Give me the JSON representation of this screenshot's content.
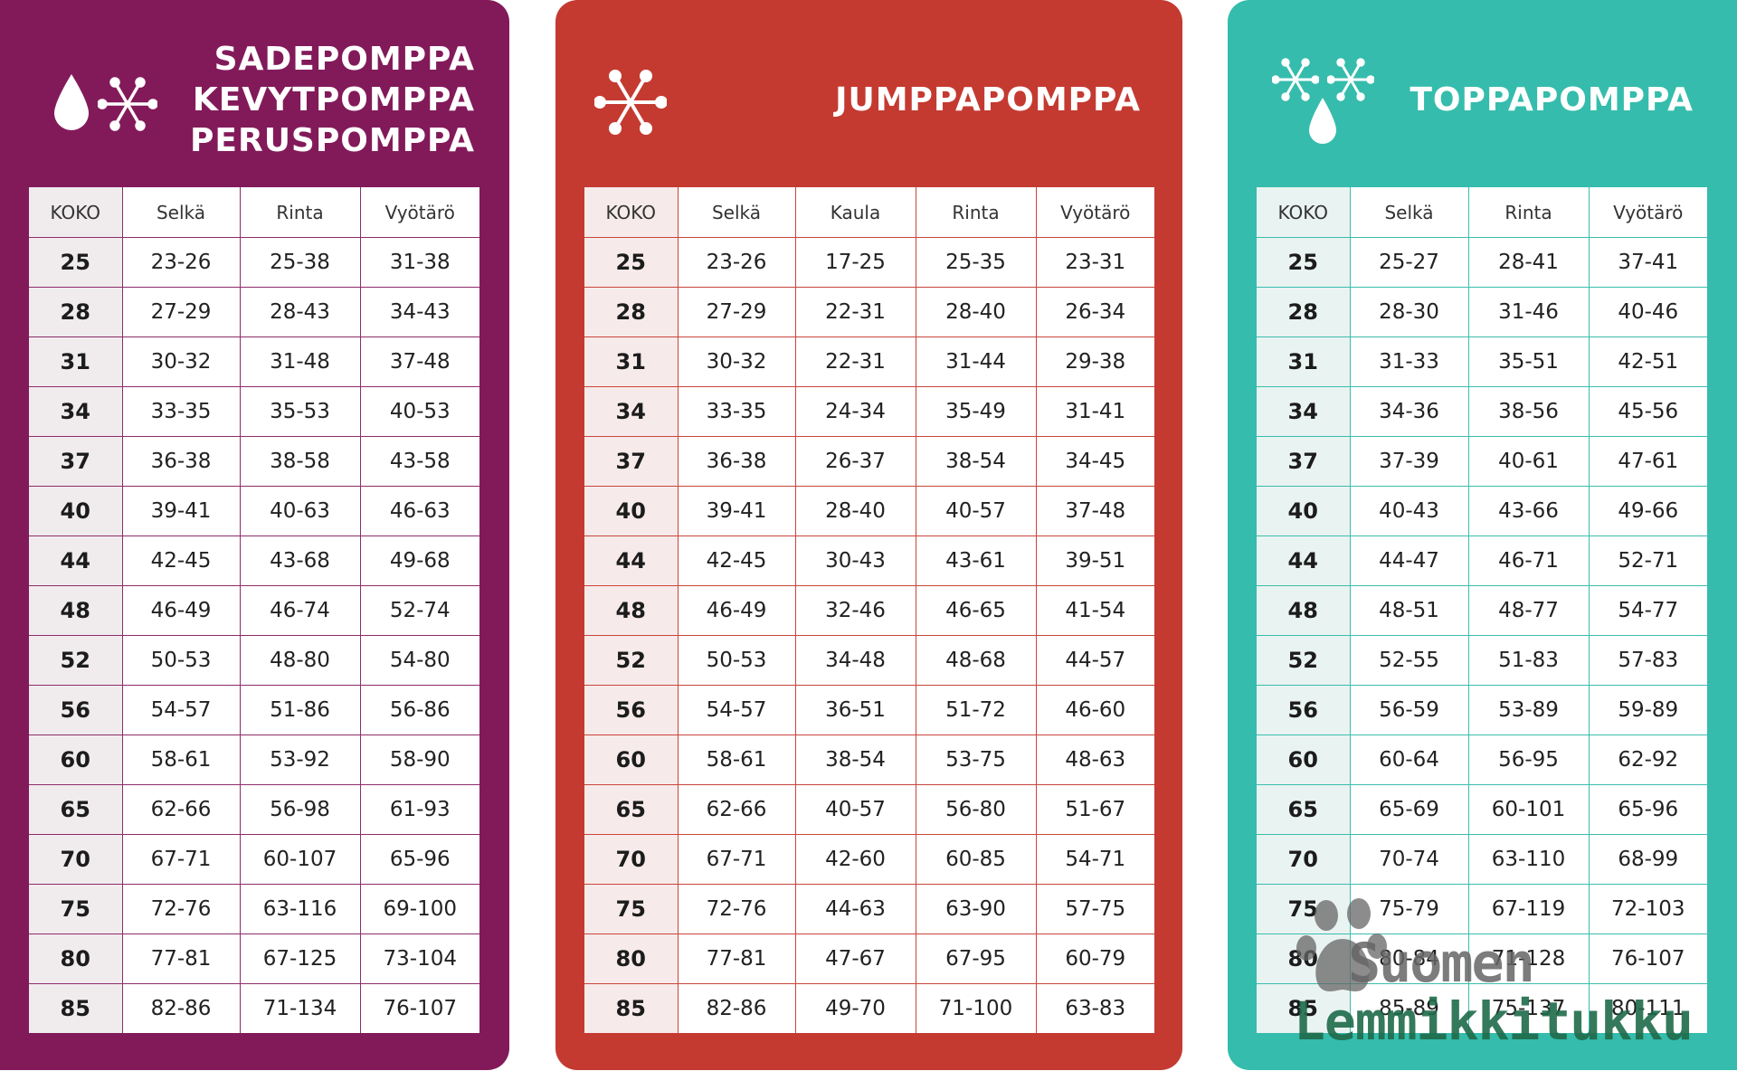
{
  "cards": [
    {
      "titles": [
        "SADEPOMPPA",
        "KEVYTPOMPPA",
        "PERUSPOMPPA"
      ],
      "headers": [
        "KOKO",
        "Selkä",
        "Rinta",
        "Vyötärö"
      ],
      "rows": [
        [
          "25",
          "23-26",
          "25-38",
          "31-38"
        ],
        [
          "28",
          "27-29",
          "28-43",
          "34-43"
        ],
        [
          "31",
          "30-32",
          "31-48",
          "37-48"
        ],
        [
          "34",
          "33-35",
          "35-53",
          "40-53"
        ],
        [
          "37",
          "36-38",
          "38-58",
          "43-58"
        ],
        [
          "40",
          "39-41",
          "40-63",
          "46-63"
        ],
        [
          "44",
          "42-45",
          "43-68",
          "49-68"
        ],
        [
          "48",
          "46-49",
          "46-74",
          "52-74"
        ],
        [
          "52",
          "50-53",
          "48-80",
          "54-80"
        ],
        [
          "56",
          "54-57",
          "51-86",
          "56-86"
        ],
        [
          "60",
          "58-61",
          "53-92",
          "58-90"
        ],
        [
          "65",
          "62-66",
          "56-98",
          "61-93"
        ],
        [
          "70",
          "67-71",
          "60-107",
          "65-96"
        ],
        [
          "75",
          "72-76",
          "63-116",
          "69-100"
        ],
        [
          "80",
          "77-81",
          "67-125",
          "73-104"
        ],
        [
          "85",
          "82-86",
          "71-134",
          "76-107"
        ]
      ]
    },
    {
      "titles": [
        "JUMPPAPOMPPA"
      ],
      "headers": [
        "KOKO",
        "Selkä",
        "Kaula",
        "Rinta",
        "Vyötärö"
      ],
      "rows": [
        [
          "25",
          "23-26",
          "17-25",
          "25-35",
          "23-31"
        ],
        [
          "28",
          "27-29",
          "22-31",
          "28-40",
          "26-34"
        ],
        [
          "31",
          "30-32",
          "22-31",
          "31-44",
          "29-38"
        ],
        [
          "34",
          "33-35",
          "24-34",
          "35-49",
          "31-41"
        ],
        [
          "37",
          "36-38",
          "26-37",
          "38-54",
          "34-45"
        ],
        [
          "40",
          "39-41",
          "28-40",
          "40-57",
          "37-48"
        ],
        [
          "44",
          "42-45",
          "30-43",
          "43-61",
          "39-51"
        ],
        [
          "48",
          "46-49",
          "32-46",
          "46-65",
          "41-54"
        ],
        [
          "52",
          "50-53",
          "34-48",
          "48-68",
          "44-57"
        ],
        [
          "56",
          "54-57",
          "36-51",
          "51-72",
          "46-60"
        ],
        [
          "60",
          "58-61",
          "38-54",
          "53-75",
          "48-63"
        ],
        [
          "65",
          "62-66",
          "40-57",
          "56-80",
          "51-67"
        ],
        [
          "70",
          "67-71",
          "42-60",
          "60-85",
          "54-71"
        ],
        [
          "75",
          "72-76",
          "44-63",
          "63-90",
          "57-75"
        ],
        [
          "80",
          "77-81",
          "47-67",
          "67-95",
          "60-79"
        ],
        [
          "85",
          "82-86",
          "49-70",
          "71-100",
          "63-83"
        ]
      ]
    },
    {
      "titles": [
        "TOPPAPOMPPA"
      ],
      "headers": [
        "KOKO",
        "Selkä",
        "Rinta",
        "Vyötärö"
      ],
      "rows": [
        [
          "25",
          "25-27",
          "28-41",
          "37-41"
        ],
        [
          "28",
          "28-30",
          "31-46",
          "40-46"
        ],
        [
          "31",
          "31-33",
          "35-51",
          "42-51"
        ],
        [
          "34",
          "34-36",
          "38-56",
          "45-56"
        ],
        [
          "37",
          "37-39",
          "40-61",
          "47-61"
        ],
        [
          "40",
          "40-43",
          "43-66",
          "49-66"
        ],
        [
          "44",
          "44-47",
          "46-71",
          "52-71"
        ],
        [
          "48",
          "48-51",
          "48-77",
          "54-77"
        ],
        [
          "52",
          "52-55",
          "51-83",
          "57-83"
        ],
        [
          "56",
          "56-59",
          "53-89",
          "59-89"
        ],
        [
          "60",
          "60-64",
          "56-95",
          "62-92"
        ],
        [
          "65",
          "65-69",
          "60-101",
          "65-96"
        ],
        [
          "70",
          "70-74",
          "63-110",
          "68-99"
        ],
        [
          "75",
          "75-79",
          "67-119",
          "72-103"
        ],
        [
          "80",
          "80-84",
          "71-128",
          "76-107"
        ],
        [
          "85",
          "85-89",
          "75-137",
          "80-111"
        ]
      ]
    }
  ],
  "icons": {
    "purple": [
      "water-drop-icon",
      "snowflake-icon"
    ],
    "red": [
      "snowflake-icon"
    ],
    "teal": [
      "snowflake-icon",
      "snowflake-icon",
      "water-drop-icon"
    ]
  },
  "watermark": {
    "line1": "Suomen",
    "line2": "Lemmikkitukku"
  },
  "colors": {
    "purple": "#821a5a",
    "red": "#c43a31",
    "teal": "#35bcac"
  }
}
